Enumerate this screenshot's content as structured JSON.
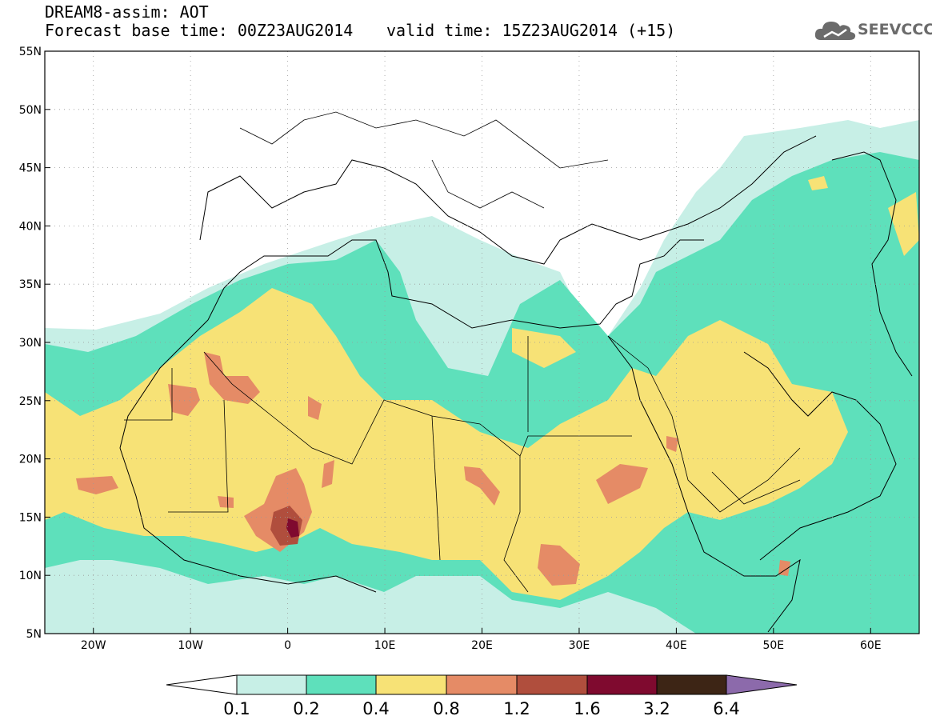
{
  "header": {
    "title": "DREAM8-assim: AOT",
    "base_time": "Forecast base time: 00Z23AUG2014",
    "valid_time": "valid time: 15Z23AUG2014 (+15)"
  },
  "logo": {
    "text": "SEEVCCC",
    "icon": "cloud-logo-icon"
  },
  "map": {
    "lon_range": [
      -25,
      65
    ],
    "lat_range": [
      5,
      55
    ],
    "lat_ticks": [
      {
        "value": 55,
        "label": "55N"
      },
      {
        "value": 50,
        "label": "50N"
      },
      {
        "value": 45,
        "label": "45N"
      },
      {
        "value": 40,
        "label": "40N"
      },
      {
        "value": 35,
        "label": "35N"
      },
      {
        "value": 30,
        "label": "30N"
      },
      {
        "value": 25,
        "label": "25N"
      },
      {
        "value": 20,
        "label": "20N"
      },
      {
        "value": 15,
        "label": "15N"
      },
      {
        "value": 10,
        "label": "10N"
      },
      {
        "value": 5,
        "label": "5N"
      }
    ],
    "lon_ticks": [
      {
        "value": -20,
        "label": "20W"
      },
      {
        "value": -10,
        "label": "10W"
      },
      {
        "value": 0,
        "label": "0"
      },
      {
        "value": 10,
        "label": "10E"
      },
      {
        "value": 20,
        "label": "20E"
      },
      {
        "value": 30,
        "label": "30E"
      },
      {
        "value": 40,
        "label": "40E"
      },
      {
        "value": 50,
        "label": "50E"
      },
      {
        "value": 60,
        "label": "60E"
      }
    ],
    "grid": true
  },
  "colorbar": {
    "levels": [
      "0.1",
      "0.2",
      "0.4",
      "0.8",
      "1.2",
      "1.6",
      "3.2",
      "6.4"
    ],
    "colors": {
      "under": "#ffffff",
      "c1": "#c7efe6",
      "c2": "#5ee0bb",
      "c3": "#f7e276",
      "c4": "#e58b66",
      "c5": "#b04e3d",
      "c6": "#7f0a2f",
      "c7": "#3d2515",
      "over": "#8c6aab"
    }
  }
}
